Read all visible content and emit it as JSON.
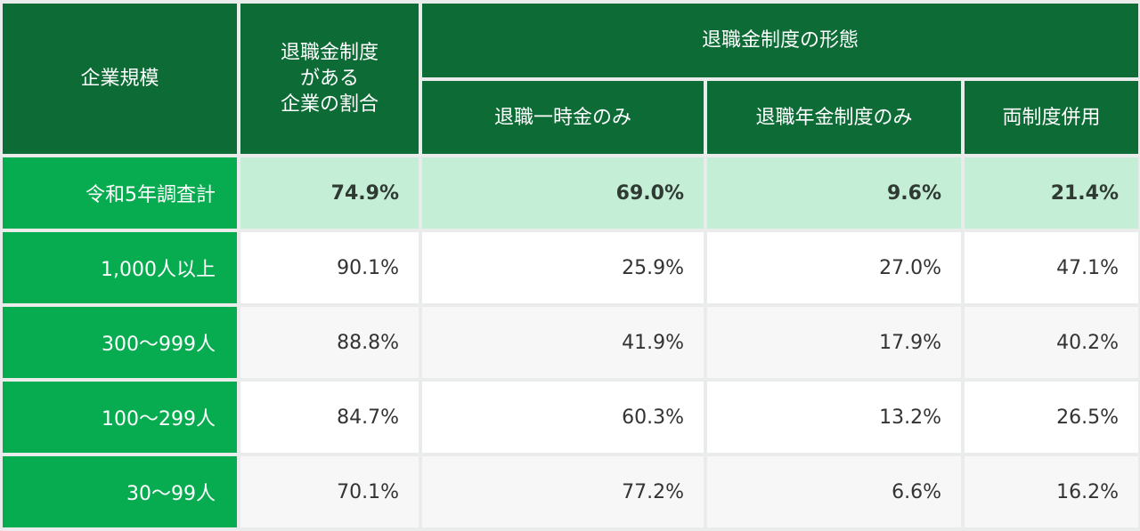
{
  "header": {
    "scale": "企業規模",
    "ratio": "退職金制度\nがある\n企業の割合",
    "form": "退職金制度の形態",
    "sub": [
      "退職一時金のみ",
      "退職年金制度のみ",
      "両制度併用"
    ]
  },
  "rows": [
    {
      "label": "令和5年調査計",
      "values": [
        "74.9%",
        "69.0%",
        "9.6%",
        "21.4%"
      ]
    },
    {
      "label": "1,000人以上",
      "values": [
        "90.1%",
        "25.9%",
        "27.0%",
        "47.1%"
      ]
    },
    {
      "label": "300～999人",
      "values": [
        "88.8%",
        "41.9%",
        "17.9%",
        "40.2%"
      ]
    },
    {
      "label": "100～299人",
      "values": [
        "84.7%",
        "60.3%",
        "13.2%",
        "26.5%"
      ]
    },
    {
      "label": "30～99人",
      "values": [
        "70.1%",
        "77.2%",
        "6.6%",
        "16.2%"
      ]
    }
  ],
  "colors": {
    "header_bg": "#0d6b36",
    "rowhead_bg": "#08ac50",
    "total_row_bg": "#c5eed7"
  }
}
